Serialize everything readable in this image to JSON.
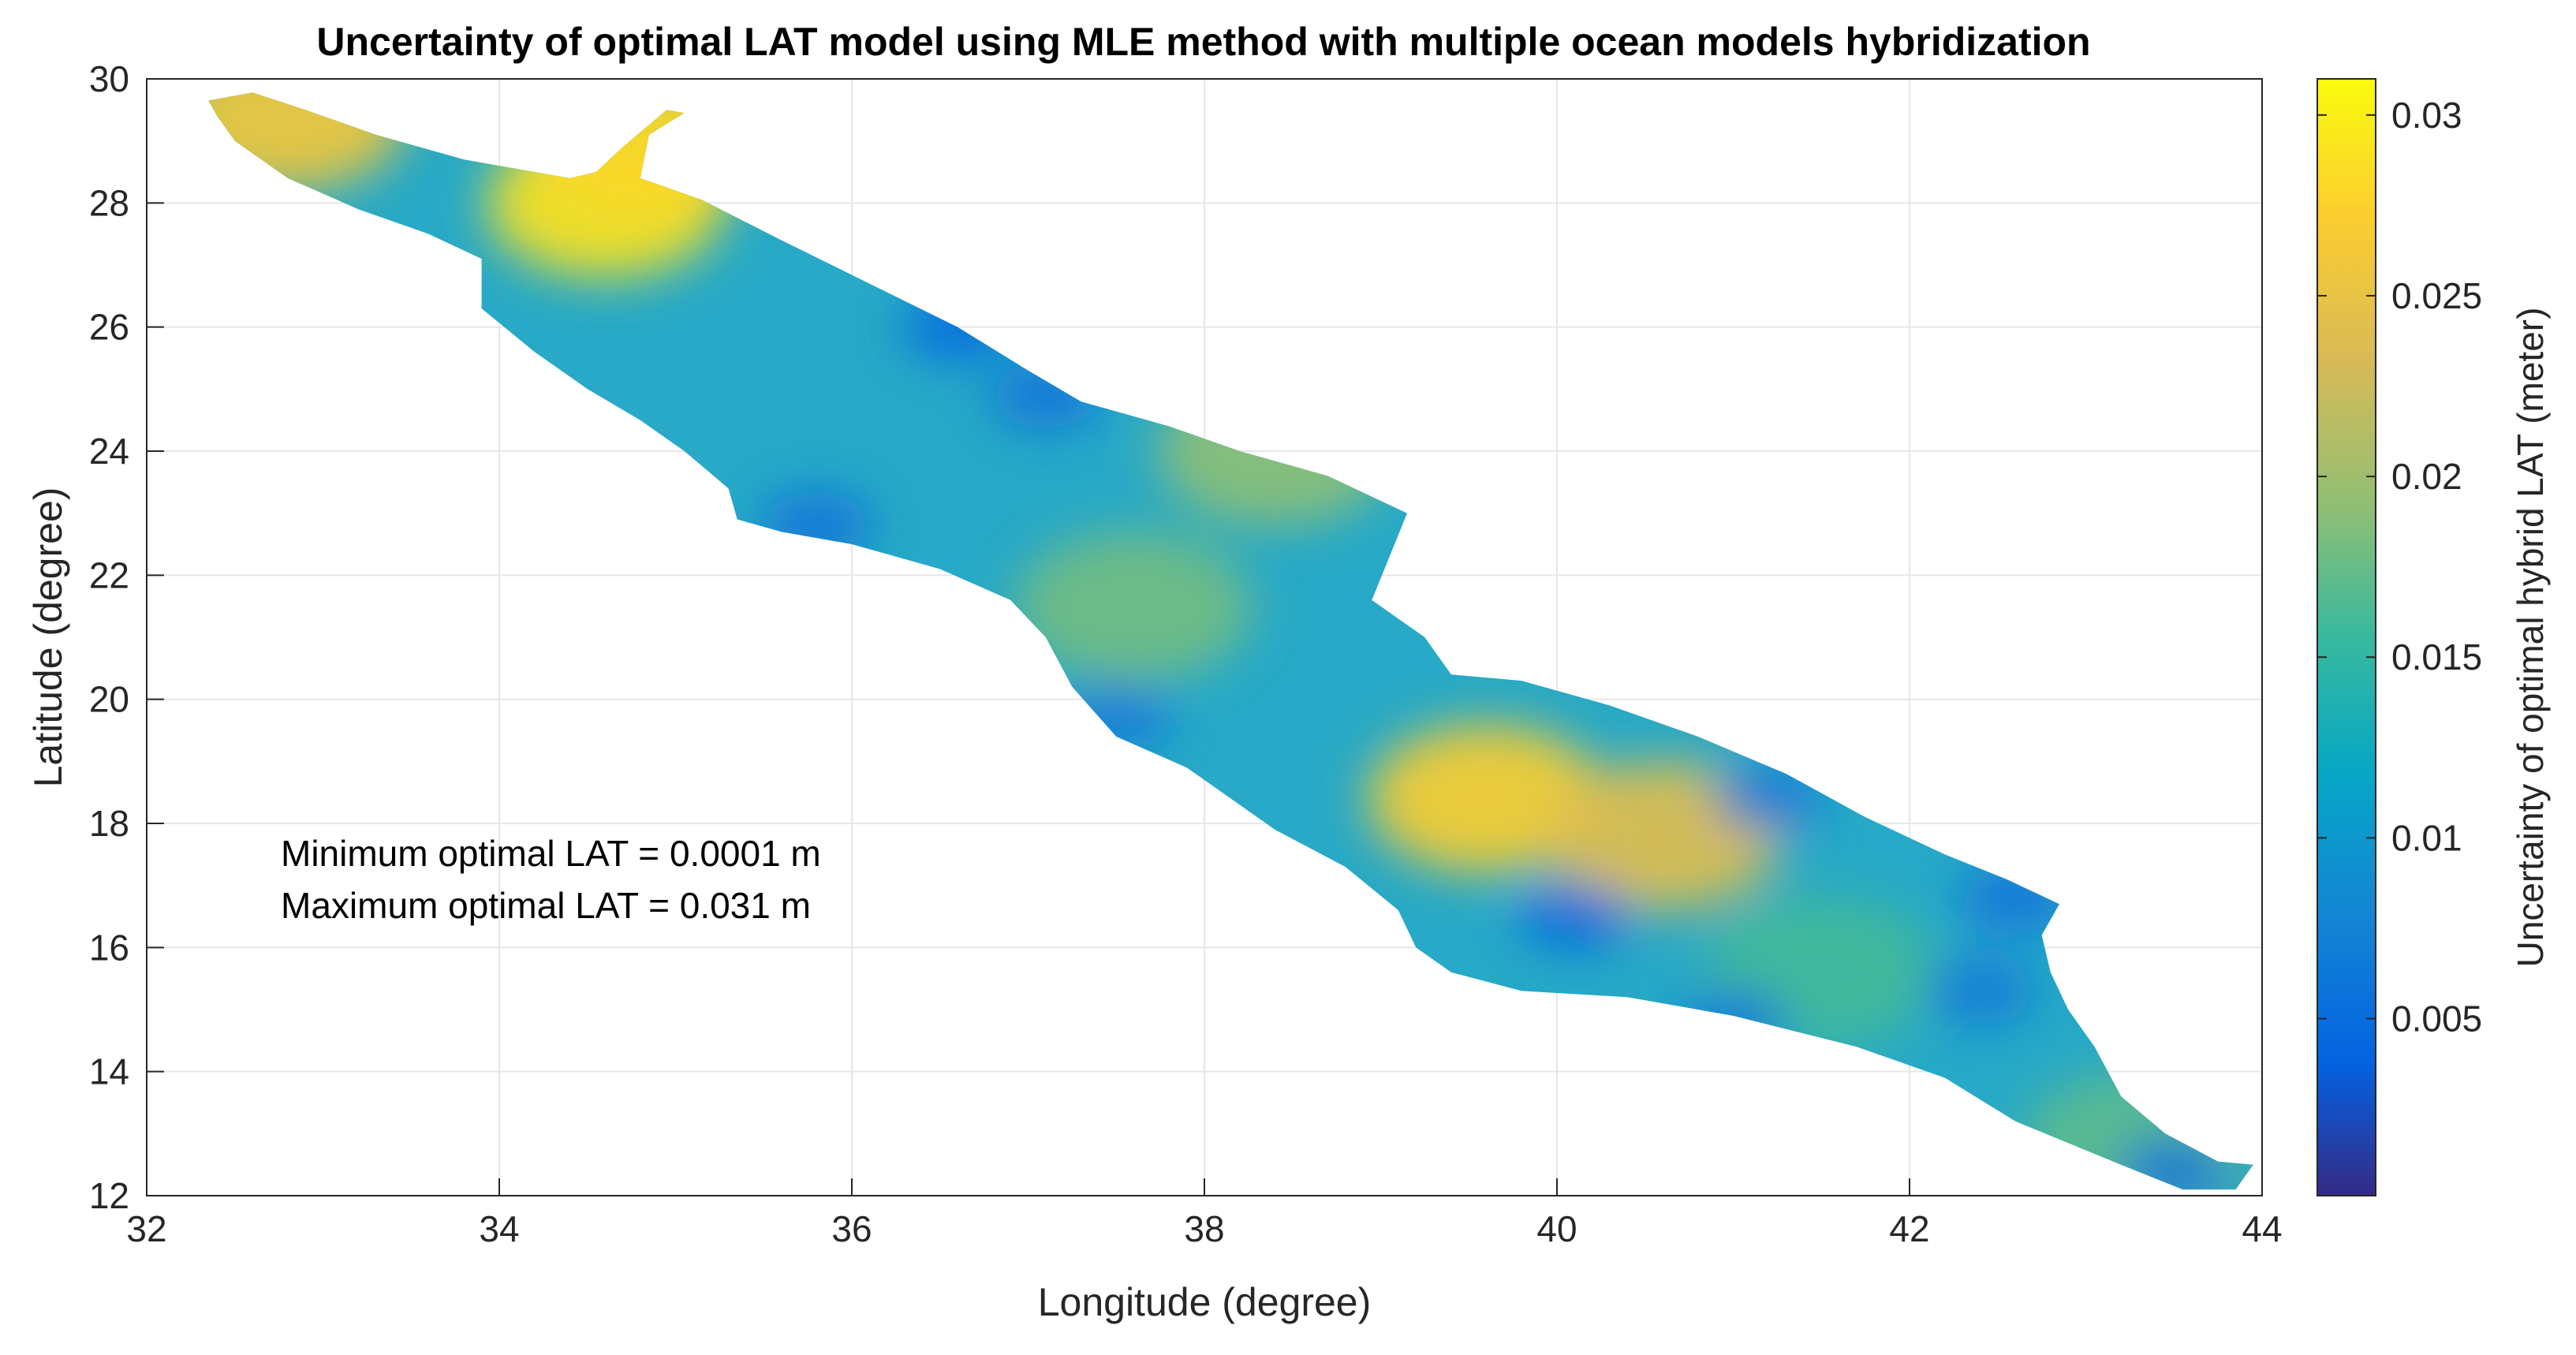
{
  "chart_data": {
    "type": "heatmap",
    "title": "Uncertainty of optimal LAT model using MLE method with multiple ocean models hybridization",
    "xlabel": "Longitude (degree)",
    "ylabel": "Latitude (degree)",
    "xlim": [
      32,
      44
    ],
    "ylim": [
      12,
      30
    ],
    "xticks": [
      32,
      34,
      36,
      38,
      40,
      42,
      44
    ],
    "yticks": [
      12,
      14,
      16,
      18,
      20,
      22,
      24,
      26,
      28,
      30
    ],
    "grid": true,
    "colormap": "parula",
    "colorbar": {
      "label": "Uncertainty of optimal hybrid LAT (meter)",
      "range": [
        0.0001,
        0.031
      ],
      "ticks": [
        0.005,
        0.01,
        0.015,
        0.02,
        0.025,
        0.03
      ],
      "tick_labels": [
        "0.005",
        "0.01",
        "0.015",
        "0.02",
        "0.025",
        "0.03"
      ]
    },
    "annotations": [
      "Minimum optimal LAT = 0.0001 m",
      "Maximum optimal LAT = 0.031 m"
    ],
    "outline": [
      [
        32.35,
        29.65
      ],
      [
        32.6,
        29.78
      ],
      [
        32.9,
        29.5
      ],
      [
        33.3,
        29.1
      ],
      [
        33.8,
        28.7
      ],
      [
        34.4,
        28.4
      ],
      [
        34.55,
        28.5
      ],
      [
        34.7,
        28.9
      ],
      [
        34.95,
        29.5
      ],
      [
        35.05,
        29.45
      ],
      [
        34.85,
        29.1
      ],
      [
        34.8,
        28.4
      ],
      [
        35.15,
        28.05
      ],
      [
        35.6,
        27.4
      ],
      [
        36.1,
        26.7
      ],
      [
        36.6,
        26.0
      ],
      [
        37.0,
        25.3
      ],
      [
        37.3,
        24.8
      ],
      [
        37.8,
        24.4
      ],
      [
        38.2,
        24.0
      ],
      [
        38.7,
        23.6
      ],
      [
        39.15,
        23.0
      ],
      [
        39.05,
        22.3
      ],
      [
        38.95,
        21.6
      ],
      [
        39.25,
        21.0
      ],
      [
        39.4,
        20.4
      ],
      [
        39.8,
        20.3
      ],
      [
        40.3,
        19.9
      ],
      [
        40.8,
        19.4
      ],
      [
        41.3,
        18.8
      ],
      [
        41.75,
        18.1
      ],
      [
        42.2,
        17.5
      ],
      [
        42.55,
        17.1
      ],
      [
        42.85,
        16.7
      ],
      [
        42.75,
        16.2
      ],
      [
        42.8,
        15.6
      ],
      [
        42.9,
        15.0
      ],
      [
        43.05,
        14.4
      ],
      [
        43.2,
        13.6
      ],
      [
        43.45,
        13.0
      ],
      [
        43.75,
        12.55
      ],
      [
        43.95,
        12.5
      ],
      [
        43.85,
        12.1
      ],
      [
        43.55,
        12.1
      ],
      [
        43.2,
        12.5
      ],
      [
        42.6,
        13.2
      ],
      [
        42.2,
        13.9
      ],
      [
        41.7,
        14.4
      ],
      [
        41.0,
        14.9
      ],
      [
        40.4,
        15.2
      ],
      [
        39.8,
        15.3
      ],
      [
        39.4,
        15.6
      ],
      [
        39.2,
        16.0
      ],
      [
        39.1,
        16.6
      ],
      [
        38.8,
        17.3
      ],
      [
        38.4,
        17.9
      ],
      [
        38.2,
        18.3
      ],
      [
        37.9,
        18.9
      ],
      [
        37.5,
        19.4
      ],
      [
        37.25,
        20.2
      ],
      [
        37.1,
        21.0
      ],
      [
        36.9,
        21.6
      ],
      [
        36.5,
        22.1
      ],
      [
        36.0,
        22.5
      ],
      [
        35.6,
        22.7
      ],
      [
        35.35,
        22.9
      ],
      [
        35.3,
        23.4
      ],
      [
        35.05,
        24.0
      ],
      [
        34.8,
        24.5
      ],
      [
        34.5,
        25.0
      ],
      [
        34.2,
        25.6
      ],
      [
        33.9,
        26.3
      ],
      [
        33.9,
        27.1
      ],
      [
        33.6,
        27.5
      ],
      [
        33.2,
        27.9
      ],
      [
        32.8,
        28.4
      ],
      [
        32.5,
        29.0
      ],
      [
        32.4,
        29.4
      ]
    ],
    "hotspots": [
      {
        "lon": 34.6,
        "lat": 28.0,
        "value": 0.029
      },
      {
        "lon": 32.8,
        "lat": 29.4,
        "value": 0.026
      },
      {
        "lon": 34.85,
        "lat": 29.0,
        "value": 0.028
      },
      {
        "lon": 39.6,
        "lat": 18.4,
        "value": 0.027
      },
      {
        "lon": 40.6,
        "lat": 17.8,
        "value": 0.024
      },
      {
        "lon": 38.4,
        "lat": 24.0,
        "value": 0.019
      },
      {
        "lon": 37.6,
        "lat": 21.5,
        "value": 0.018
      },
      {
        "lon": 43.3,
        "lat": 12.8,
        "value": 0.017
      },
      {
        "lon": 41.5,
        "lat": 15.6,
        "value": 0.016
      },
      {
        "lon": 36.6,
        "lat": 26.0,
        "value": 0.004
      },
      {
        "lon": 37.1,
        "lat": 24.9,
        "value": 0.005
      },
      {
        "lon": 40.1,
        "lat": 16.5,
        "value": 0.004
      },
      {
        "lon": 41.2,
        "lat": 18.4,
        "value": 0.006
      },
      {
        "lon": 42.6,
        "lat": 16.8,
        "value": 0.005
      },
      {
        "lon": 43.5,
        "lat": 12.4,
        "value": 0.005
      },
      {
        "lon": 35.8,
        "lat": 22.8,
        "value": 0.005
      },
      {
        "lon": 37.5,
        "lat": 19.7,
        "value": 0.006
      },
      {
        "lon": 41.0,
        "lat": 14.8,
        "value": 0.006
      },
      {
        "lon": 42.4,
        "lat": 15.3,
        "value": 0.006
      }
    ]
  }
}
